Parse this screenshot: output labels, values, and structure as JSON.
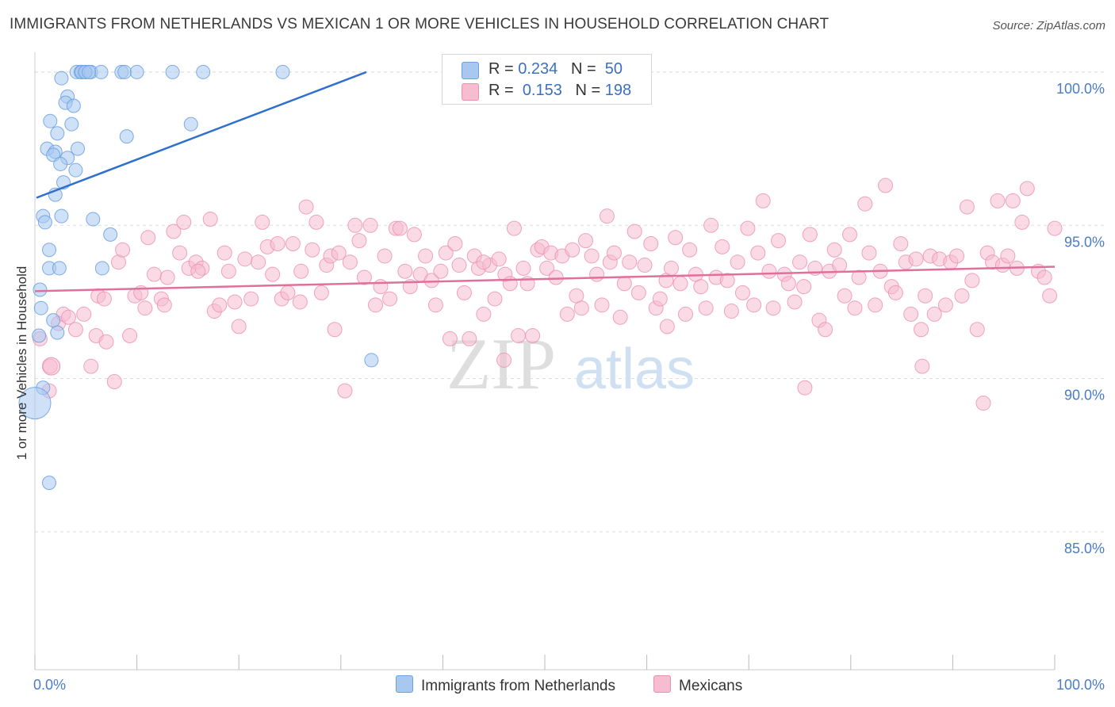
{
  "title": "IMMIGRANTS FROM NETHERLANDS VS MEXICAN 1 OR MORE VEHICLES IN HOUSEHOLD CORRELATION CHART",
  "source": "Source: ZipAtlas.com",
  "watermark": {
    "zip": "ZIP",
    "atlas": "atlas"
  },
  "colors": {
    "blue_fill": "#a8c8f0",
    "blue_stroke": "#6a9fe0",
    "blue_line": "#2f6fce",
    "pink_fill": "#f6bcd0",
    "pink_stroke": "#ec8fb0",
    "pink_line": "#e0709a",
    "tick_label": "#4a7cc7",
    "grid": "#dddddd"
  },
  "legend": {
    "rows": [
      {
        "r_label": "R =",
        "r_value": "0.234",
        "n_label": "N =",
        "n_value": "50",
        "color": "#a8c8f0"
      },
      {
        "r_label": "R =",
        "r_value": "0.153",
        "n_label": "N =",
        "n_value": "198",
        "color": "#f6bcd0"
      }
    ],
    "bottom": [
      {
        "label": "Immigrants from Netherlands",
        "color": "#a8c8f0"
      },
      {
        "label": "Mexicans",
        "color": "#f6bcd0"
      }
    ]
  },
  "chart_data": {
    "type": "scatter",
    "title": "IMMIGRANTS FROM NETHERLANDS VS MEXICAN 1 OR MORE VEHICLES IN HOUSEHOLD CORRELATION CHART",
    "xlabel": "",
    "ylabel": "1 or more Vehicles in Household",
    "xlim": [
      0,
      100
    ],
    "ylim": [
      80.5,
      100.8
    ],
    "x_tick_labels": [
      "0.0%",
      "100.0%"
    ],
    "y_ticks": [
      85,
      90,
      95,
      100
    ],
    "y_tick_labels": [
      "85.0%",
      "90.0%",
      "95.0%",
      "100.0%"
    ],
    "grid": true,
    "legend_placement": "top-center",
    "series": [
      {
        "name": "Immigrants from Netherlands",
        "r": 0.234,
        "n": 50,
        "trend": {
          "x": [
            0,
            32.5
          ],
          "y": [
            95.9,
            100.0
          ]
        },
        "points": [
          [
            4.1,
            100
          ],
          [
            4.5,
            100
          ],
          [
            4.6,
            100
          ],
          [
            5.0,
            100
          ],
          [
            5.5,
            100
          ],
          [
            6.5,
            100
          ],
          [
            8.5,
            100
          ],
          [
            8.8,
            100
          ],
          [
            10.0,
            100
          ],
          [
            13.5,
            100
          ],
          [
            16.5,
            100
          ],
          [
            24.3,
            100
          ],
          [
            4.9,
            100
          ],
          [
            5.3,
            100
          ],
          [
            3.2,
            99.2
          ],
          [
            3.0,
            99.0
          ],
          [
            3.8,
            98.9
          ],
          [
            1.5,
            98.4
          ],
          [
            3.6,
            98.3
          ],
          [
            15.3,
            98.3
          ],
          [
            2.2,
            98.0
          ],
          [
            9.0,
            97.9
          ],
          [
            1.2,
            97.5
          ],
          [
            2.0,
            97.4
          ],
          [
            4.2,
            97.5
          ],
          [
            1.8,
            97.3
          ],
          [
            3.2,
            97.2
          ],
          [
            2.5,
            97.0
          ],
          [
            4.0,
            96.8
          ],
          [
            2.8,
            96.4
          ],
          [
            2.0,
            96.0
          ],
          [
            0.8,
            95.3
          ],
          [
            2.6,
            95.3
          ],
          [
            5.7,
            95.2
          ],
          [
            1.0,
            95.1
          ],
          [
            7.4,
            94.7
          ],
          [
            1.4,
            94.2
          ],
          [
            1.4,
            93.6
          ],
          [
            2.4,
            93.6
          ],
          [
            6.6,
            93.6
          ],
          [
            0.5,
            92.9
          ],
          [
            0.6,
            92.3
          ],
          [
            1.8,
            91.9
          ],
          [
            2.2,
            91.5
          ],
          [
            0.4,
            91.4
          ],
          [
            33.0,
            90.6
          ],
          [
            0.8,
            89.7
          ],
          [
            0.0,
            89.2
          ],
          [
            1.4,
            86.6
          ],
          [
            2.6,
            99.8
          ]
        ]
      },
      {
        "name": "Mexicans",
        "r": 0.153,
        "n": 198,
        "trend": {
          "x": [
            0,
            100
          ],
          "y": [
            92.85,
            93.65
          ]
        },
        "points": [
          [
            0.5,
            91.3
          ],
          [
            1.5,
            90.4
          ],
          [
            1.4,
            89.6
          ],
          [
            2.3,
            91.8
          ],
          [
            2.8,
            92.1
          ],
          [
            3.3,
            92.0
          ],
          [
            4.0,
            91.6
          ],
          [
            4.8,
            92.1
          ],
          [
            5.5,
            90.4
          ],
          [
            6.0,
            91.4
          ],
          [
            6.2,
            92.7
          ],
          [
            6.8,
            92.6
          ],
          [
            7.0,
            91.2
          ],
          [
            7.8,
            89.9
          ],
          [
            8.2,
            93.8
          ],
          [
            8.6,
            94.2
          ],
          [
            9.3,
            91.4
          ],
          [
            9.8,
            92.7
          ],
          [
            10.4,
            92.8
          ],
          [
            10.8,
            92.3
          ],
          [
            11.1,
            94.6
          ],
          [
            11.7,
            93.4
          ],
          [
            12.4,
            92.6
          ],
          [
            12.7,
            92.4
          ],
          [
            13.0,
            93.3
          ],
          [
            13.6,
            94.8
          ],
          [
            14.2,
            94.1
          ],
          [
            14.6,
            95.1
          ],
          [
            15.1,
            93.6
          ],
          [
            15.8,
            93.8
          ],
          [
            16.4,
            93.6
          ],
          [
            17.2,
            95.2
          ],
          [
            17.6,
            92.2
          ],
          [
            18.1,
            92.4
          ],
          [
            18.6,
            94.1
          ],
          [
            19.0,
            93.5
          ],
          [
            19.6,
            92.5
          ],
          [
            20.0,
            91.7
          ],
          [
            20.6,
            93.9
          ],
          [
            21.2,
            92.6
          ],
          [
            21.9,
            93.8
          ],
          [
            22.3,
            95.1
          ],
          [
            22.8,
            94.3
          ],
          [
            23.3,
            93.4
          ],
          [
            23.8,
            94.4
          ],
          [
            24.2,
            92.6
          ],
          [
            24.8,
            92.8
          ],
          [
            25.3,
            94.4
          ],
          [
            26.1,
            93.5
          ],
          [
            26.6,
            95.6
          ],
          [
            27.2,
            94.2
          ],
          [
            27.6,
            95.1
          ],
          [
            28.1,
            92.8
          ],
          [
            28.6,
            93.7
          ],
          [
            29.0,
            94.0
          ],
          [
            29.4,
            91.6
          ],
          [
            29.8,
            94.1
          ],
          [
            30.4,
            89.6
          ],
          [
            30.9,
            93.8
          ],
          [
            31.4,
            95.0
          ],
          [
            31.8,
            94.5
          ],
          [
            32.3,
            93.3
          ],
          [
            32.9,
            95.0
          ],
          [
            33.4,
            92.4
          ],
          [
            33.9,
            93.0
          ],
          [
            34.3,
            94.0
          ],
          [
            34.8,
            92.6
          ],
          [
            35.4,
            94.9
          ],
          [
            35.8,
            94.9
          ],
          [
            36.3,
            93.5
          ],
          [
            36.8,
            93.0
          ],
          [
            37.2,
            94.7
          ],
          [
            37.8,
            93.4
          ],
          [
            38.3,
            94.0
          ],
          [
            38.9,
            93.2
          ],
          [
            39.3,
            92.4
          ],
          [
            39.8,
            93.5
          ],
          [
            40.3,
            94.1
          ],
          [
            40.7,
            91.3
          ],
          [
            41.2,
            94.4
          ],
          [
            41.6,
            93.7
          ],
          [
            42.1,
            92.8
          ],
          [
            42.6,
            91.3
          ],
          [
            43.1,
            94.0
          ],
          [
            43.5,
            93.6
          ],
          [
            44.0,
            92.1
          ],
          [
            44.6,
            93.7
          ],
          [
            45.1,
            92.6
          ],
          [
            45.5,
            93.9
          ],
          [
            46.1,
            93.4
          ],
          [
            46.6,
            93.1
          ],
          [
            47.0,
            94.9
          ],
          [
            47.4,
            91.4
          ],
          [
            47.9,
            93.6
          ],
          [
            48.3,
            93.1
          ],
          [
            48.8,
            91.4
          ],
          [
            49.3,
            94.2
          ],
          [
            49.7,
            94.3
          ],
          [
            50.2,
            93.6
          ],
          [
            50.6,
            94.1
          ],
          [
            51.1,
            93.3
          ],
          [
            51.7,
            94.0
          ],
          [
            52.2,
            92.1
          ],
          [
            52.7,
            94.2
          ],
          [
            53.1,
            92.7
          ],
          [
            53.6,
            92.3
          ],
          [
            54.0,
            94.5
          ],
          [
            54.6,
            94.0
          ],
          [
            55.1,
            93.4
          ],
          [
            55.6,
            92.4
          ],
          [
            56.1,
            95.3
          ],
          [
            56.4,
            93.8
          ],
          [
            56.8,
            94.1
          ],
          [
            57.4,
            92.0
          ],
          [
            57.8,
            93.1
          ],
          [
            58.3,
            93.8
          ],
          [
            58.8,
            94.8
          ],
          [
            59.2,
            92.8
          ],
          [
            59.8,
            93.7
          ],
          [
            60.4,
            94.4
          ],
          [
            60.9,
            92.3
          ],
          [
            61.3,
            92.6
          ],
          [
            61.9,
            93.2
          ],
          [
            62.4,
            93.6
          ],
          [
            62.8,
            94.6
          ],
          [
            63.3,
            93.1
          ],
          [
            63.8,
            92.1
          ],
          [
            64.2,
            94.2
          ],
          [
            64.8,
            93.4
          ],
          [
            65.3,
            93.0
          ],
          [
            65.8,
            92.3
          ],
          [
            66.3,
            95.0
          ],
          [
            66.8,
            93.3
          ],
          [
            67.4,
            94.3
          ],
          [
            67.9,
            93.2
          ],
          [
            68.3,
            92.2
          ],
          [
            68.9,
            93.8
          ],
          [
            69.4,
            92.8
          ],
          [
            69.9,
            94.9
          ],
          [
            70.5,
            92.4
          ],
          [
            70.9,
            94.1
          ],
          [
            71.4,
            95.8
          ],
          [
            72.0,
            93.5
          ],
          [
            72.4,
            92.3
          ],
          [
            72.9,
            94.5
          ],
          [
            73.5,
            93.4
          ],
          [
            73.9,
            93.1
          ],
          [
            74.5,
            92.5
          ],
          [
            75.0,
            93.8
          ],
          [
            75.4,
            93.0
          ],
          [
            76.0,
            94.7
          ],
          [
            76.5,
            93.6
          ],
          [
            76.9,
            91.9
          ],
          [
            77.5,
            91.6
          ],
          [
            77.9,
            93.5
          ],
          [
            78.4,
            94.2
          ],
          [
            78.9,
            93.7
          ],
          [
            79.4,
            92.7
          ],
          [
            79.9,
            94.7
          ],
          [
            80.4,
            92.3
          ],
          [
            80.8,
            93.3
          ],
          [
            81.4,
            95.7
          ],
          [
            81.8,
            94.1
          ],
          [
            82.4,
            92.4
          ],
          [
            82.9,
            93.5
          ],
          [
            83.4,
            96.3
          ],
          [
            84.0,
            93.0
          ],
          [
            84.4,
            92.8
          ],
          [
            84.9,
            94.4
          ],
          [
            85.4,
            93.8
          ],
          [
            85.9,
            92.1
          ],
          [
            86.4,
            93.9
          ],
          [
            86.9,
            91.6
          ],
          [
            87.3,
            92.7
          ],
          [
            87.8,
            94.0
          ],
          [
            88.2,
            92.1
          ],
          [
            88.7,
            93.9
          ],
          [
            89.3,
            92.4
          ],
          [
            89.8,
            93.8
          ],
          [
            90.4,
            94.0
          ],
          [
            90.9,
            92.7
          ],
          [
            91.4,
            95.6
          ],
          [
            91.9,
            93.2
          ],
          [
            92.4,
            91.6
          ],
          [
            93.0,
            89.2
          ],
          [
            93.4,
            94.1
          ],
          [
            93.9,
            93.8
          ],
          [
            94.4,
            95.8
          ],
          [
            94.9,
            93.7
          ],
          [
            95.4,
            94.0
          ],
          [
            95.9,
            95.8
          ],
          [
            96.3,
            93.6
          ],
          [
            96.8,
            95.1
          ],
          [
            97.3,
            96.2
          ],
          [
            98.4,
            93.5
          ],
          [
            99.0,
            93.3
          ],
          [
            99.5,
            92.7
          ],
          [
            100.0,
            94.9
          ],
          [
            16.0,
            93.5
          ],
          [
            26.0,
            92.5
          ],
          [
            44.0,
            93.8
          ],
          [
            62.0,
            91.7
          ],
          [
            75.5,
            89.7
          ],
          [
            87.0,
            90.4
          ],
          [
            46.0,
            90.6
          ]
        ]
      }
    ]
  }
}
